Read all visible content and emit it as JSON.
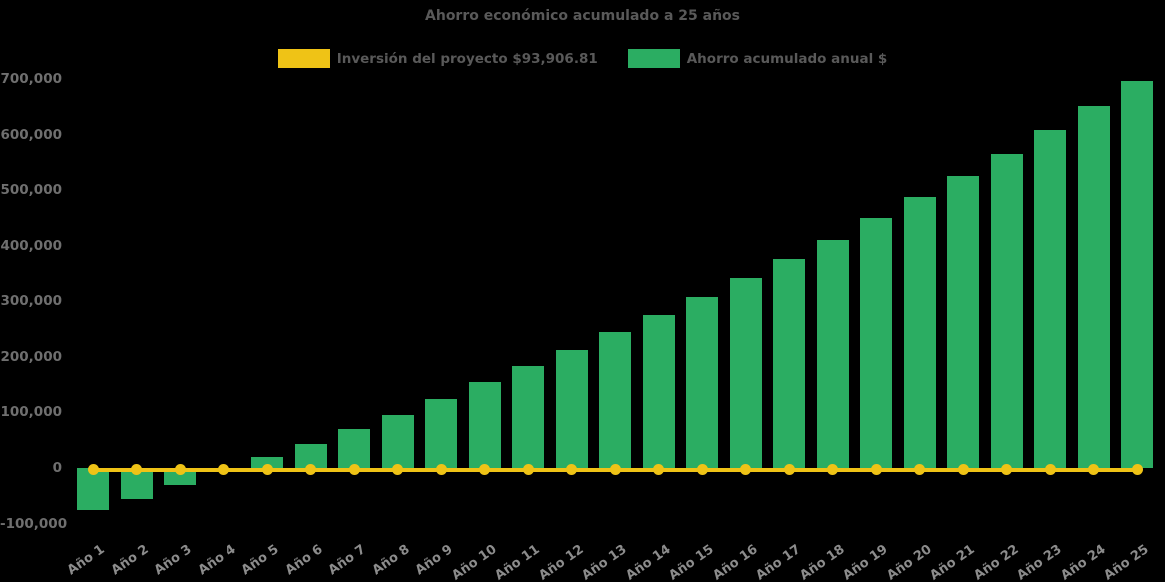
{
  "title": "Ahorro económico acumulado a 25 años",
  "legend": [
    {
      "label": "Inversión del proyecto $93,906.81",
      "color": "#EFC316",
      "marker": "yellow-swatch"
    },
    {
      "label": "Ahorro acumulado anual $",
      "color": "#2BAD62",
      "marker": "green-swatch"
    }
  ],
  "colors": {
    "background": "#000000",
    "bar_green": "#2BAD62",
    "line_yellow": "#EFC316",
    "title_text": "#595959",
    "y_axis_text": "#6F6F6F",
    "x_axis_text": "#8C8C8C"
  },
  "chart_data": {
    "type": "bar",
    "title": "Ahorro económico acumulado a 25 años",
    "categories": [
      "Año 1",
      "Año 2",
      "Año 3",
      "Año 4",
      "Año 5",
      "Año 6",
      "Año 7",
      "Año 8",
      "Año 9",
      "Año 10",
      "Año 11",
      "Año 12",
      "Año 13",
      "Año 14",
      "Año 15",
      "Año 16",
      "Año 17",
      "Año 18",
      "Año 19",
      "Año 20",
      "Año 21",
      "Año 22",
      "Año 23",
      "Año 24",
      "Año 25"
    ],
    "series": [
      {
        "name": "Ahorro acumulado anual $",
        "type": "bar",
        "color": "#2BAD62",
        "values": [
          -76000,
          -55000,
          -30000,
          -2000,
          19000,
          44000,
          71000,
          96000,
          125000,
          154000,
          183000,
          213000,
          244000,
          276000,
          308000,
          342000,
          377000,
          411000,
          449000,
          488000,
          526000,
          565000,
          609000,
          652000,
          697000
        ]
      },
      {
        "name": "Inversión del proyecto $93,906.81",
        "type": "line",
        "color": "#EFC316",
        "marker": "circle",
        "investment_amount_label": 93906.81,
        "plotted_value": 0
      }
    ],
    "y_axis": {
      "min": -100000,
      "max": 700000,
      "step": 100000,
      "tick_labels": [
        "700,000",
        "600,000",
        "500,000",
        "400,000",
        "300,000",
        "200,000",
        "100,000",
        "0",
        "-100,000"
      ]
    },
    "x_axis": {
      "label_rotation_deg": -35
    },
    "grid": false,
    "legend_position": "top"
  }
}
